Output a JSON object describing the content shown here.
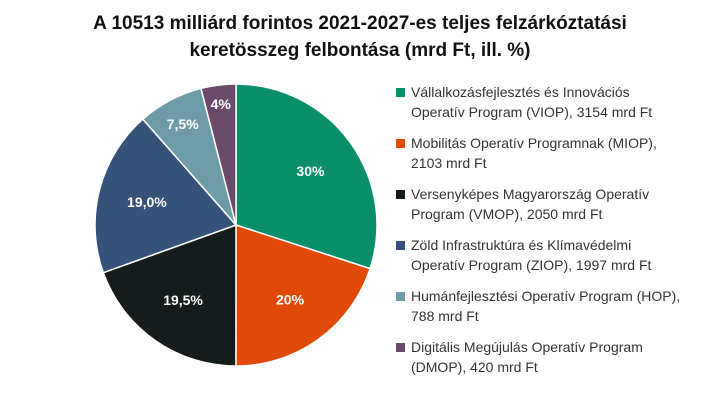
{
  "chart_data": {
    "type": "pie",
    "title_lines": [
      "A 10513 milliárd forintos 2021-2027-es teljes felzárkóztatási",
      "keretösszeg felbontása (mrd Ft, ill. %)"
    ],
    "slices": [
      {
        "name": "Vállalkozásfejlesztés és Innovációs\nOperatív Program (VIOP), 3154 mrd Ft",
        "value": 3154,
        "label": "30%",
        "color": "#0a8f6a"
      },
      {
        "name": "Mobilitás Operatív Programnak (MIOP),\n2103 mrd Ft",
        "value": 2103,
        "label": "20%",
        "color": "#e04a06"
      },
      {
        "name": "Versenyképes Magyarország Operatív\nProgram (VMOP), 2050 mrd Ft",
        "value": 2050,
        "label": "19,5%",
        "color": "#161c1b"
      },
      {
        "name": "Zöld Infrastruktúra és Klímavédelmi\nOperatív Program (ZIOP), 1997 mrd Ft",
        "value": 1997,
        "label": "19,0%",
        "color": "#34527a"
      },
      {
        "name": "Humánfejlesztési Operatív Program (HOP),\n788 mrd Ft",
        "value": 788,
        "label": "7,5%",
        "color": "#6e9ba8"
      },
      {
        "name": "Digitális Megújulás Operatív Program\n(DMOP), 420 mrd Ft",
        "value": 420,
        "label": "4%",
        "color": "#6b4a6c"
      }
    ],
    "legend_position": "right",
    "start_angle": "12 o'clock",
    "direction": "clockwise"
  }
}
